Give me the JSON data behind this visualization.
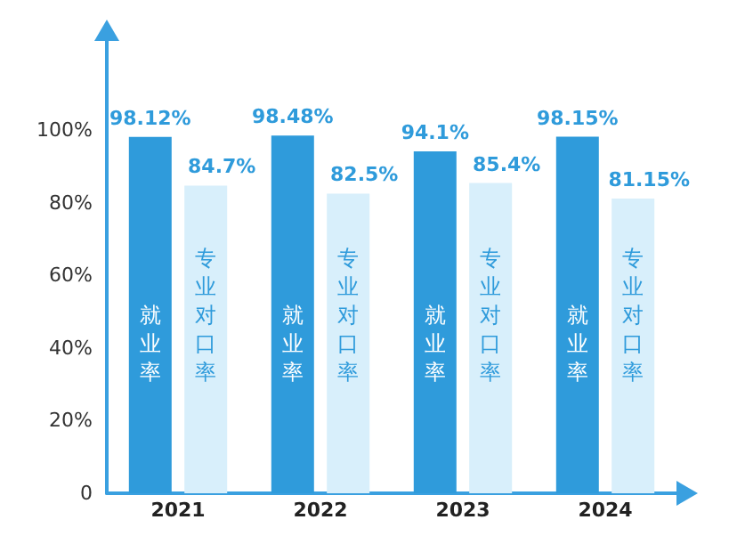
{
  "chart_data": {
    "type": "bar",
    "categories": [
      "2021",
      "2022",
      "2023",
      "2024"
    ],
    "series": [
      {
        "name": "就业率",
        "color": "#2f9bdb",
        "values": [
          98.12,
          98.48,
          94.1,
          98.15
        ],
        "value_labels": [
          "98.12%",
          "98.48%",
          "94.1%",
          "98.15%"
        ]
      },
      {
        "name": "专业对口率",
        "color": "#d8effb",
        "values": [
          84.7,
          82.5,
          85.4,
          81.15
        ],
        "value_labels": [
          "84.7%",
          "82.5%",
          "85.4%",
          "81.15%"
        ]
      }
    ],
    "ylim": [
      0,
      125
    ],
    "yticks": [
      {
        "value": 0,
        "label": "0"
      },
      {
        "value": 20,
        "label": "20%"
      },
      {
        "value": 40,
        "label": "40%"
      },
      {
        "value": 60,
        "label": "60%"
      },
      {
        "value": 80,
        "label": "80%"
      },
      {
        "value": 100,
        "label": "100%"
      }
    ],
    "grid": false,
    "legend": false
  }
}
